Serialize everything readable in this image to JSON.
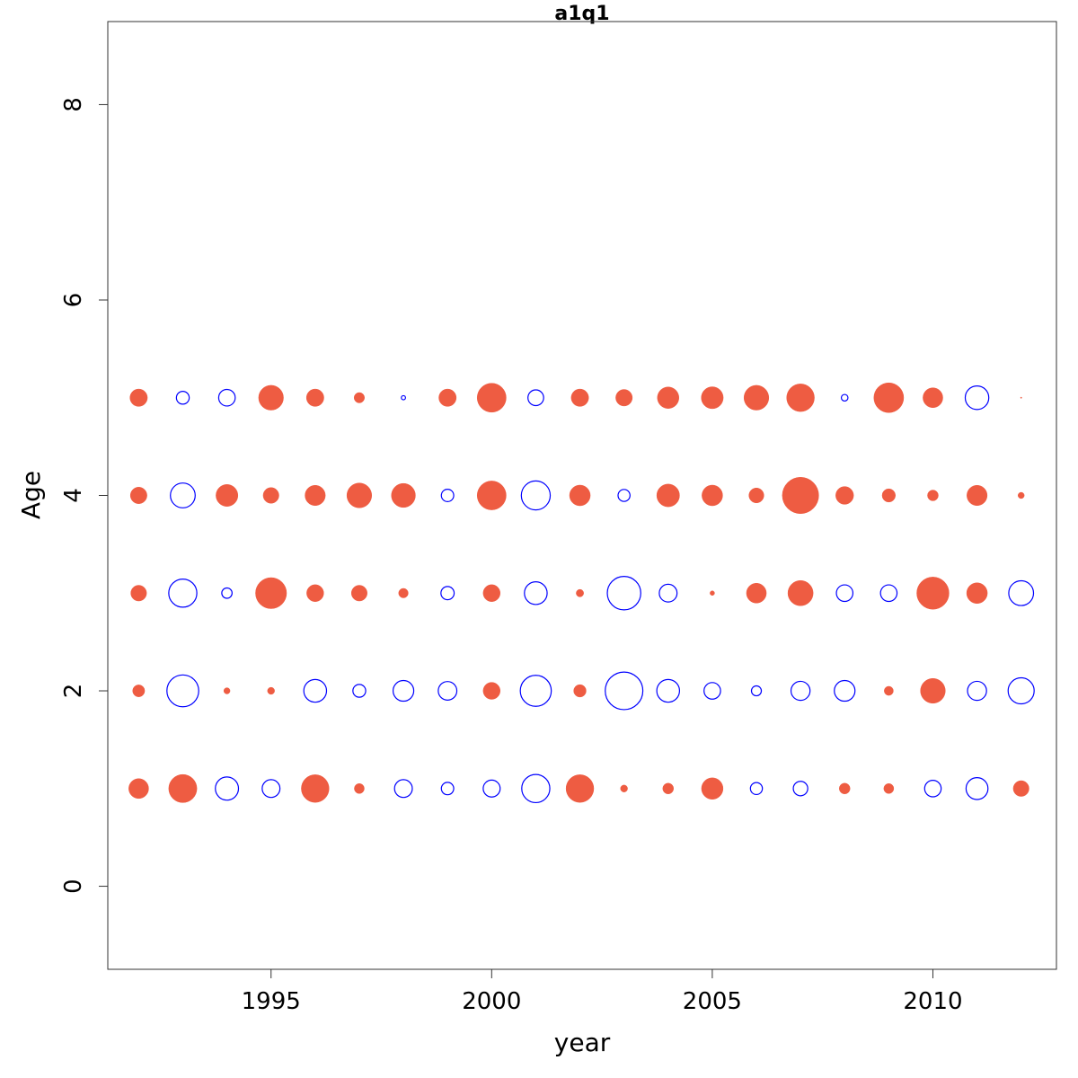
{
  "chart_data": {
    "type": "scatter",
    "subtype": "bubble",
    "title": "a1q1",
    "xlabel": "year",
    "ylabel": "Age",
    "xlim": [
      1991.3,
      2012.8
    ],
    "ylim": [
      -0.85,
      8.85
    ],
    "x_ticks": [
      1995,
      2000,
      2005,
      2010
    ],
    "y_ticks": [
      0,
      2,
      4,
      6,
      8
    ],
    "grid": false,
    "legend": "none",
    "colors": {
      "positive": "#ee5c42",
      "negative": "#0000ff"
    },
    "encoding": "marker size ~ |value|; filled orange-red = positive, open blue circle = negative",
    "years": [
      1992,
      1993,
      1994,
      1995,
      1996,
      1997,
      1998,
      1999,
      2000,
      2001,
      2002,
      2003,
      2004,
      2005,
      2006,
      2007,
      2008,
      2009,
      2010,
      2011,
      2012
    ],
    "series": [
      {
        "age": 1,
        "values": [
          0.48,
          0.68,
          -0.56,
          -0.43,
          0.67,
          0.24,
          -0.43,
          -0.3,
          -0.41,
          -0.68,
          0.67,
          0.17,
          0.26,
          0.52,
          -0.29,
          -0.35,
          0.26,
          0.24,
          -0.4,
          -0.53,
          0.38
        ]
      },
      {
        "age": 2,
        "values": [
          0.29,
          -0.77,
          0.15,
          0.17,
          -0.55,
          -0.31,
          -0.5,
          -0.45,
          0.41,
          -0.75,
          0.3,
          -0.91,
          -0.55,
          -0.4,
          -0.24,
          -0.46,
          -0.5,
          0.22,
          0.6,
          -0.46,
          -0.63
        ]
      },
      {
        "age": 3,
        "values": [
          0.38,
          -0.68,
          -0.25,
          0.75,
          0.41,
          0.38,
          0.23,
          -0.32,
          0.41,
          -0.55,
          0.18,
          -0.81,
          -0.43,
          0.11,
          0.48,
          0.61,
          -0.4,
          -0.4,
          0.78,
          0.5,
          -0.6
        ]
      },
      {
        "age": 4,
        "values": [
          0.4,
          -0.6,
          0.53,
          0.38,
          0.49,
          0.6,
          0.58,
          -0.3,
          0.7,
          -0.7,
          0.5,
          -0.29,
          0.55,
          0.5,
          0.36,
          0.88,
          0.43,
          0.32,
          0.26,
          0.49,
          0.15
        ]
      },
      {
        "age": 5,
        "values": [
          0.42,
          -0.31,
          -0.4,
          0.6,
          0.42,
          0.25,
          -0.1,
          0.42,
          0.7,
          -0.38,
          0.42,
          0.4,
          0.52,
          0.53,
          0.6,
          0.67,
          -0.16,
          0.72,
          0.48,
          -0.57,
          0.03
        ]
      }
    ]
  }
}
